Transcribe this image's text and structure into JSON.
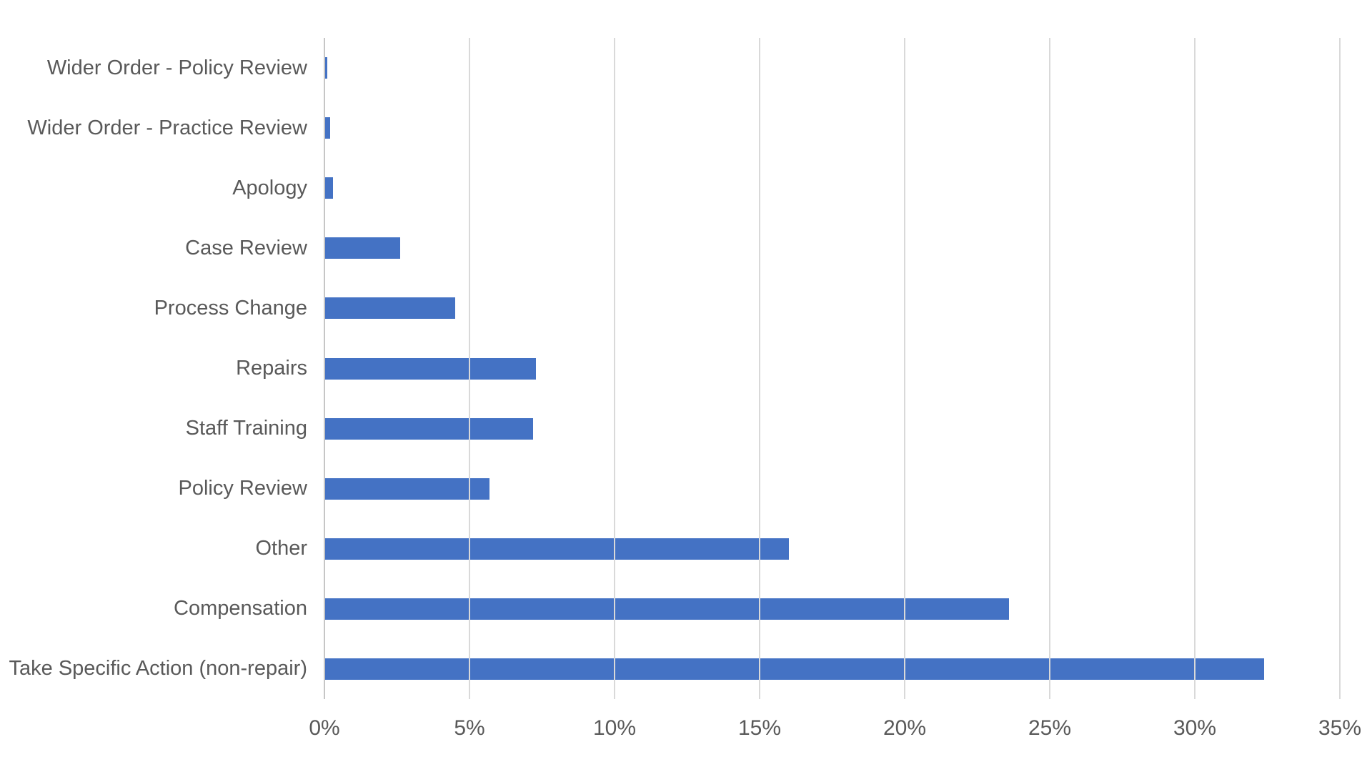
{
  "chart_data": {
    "type": "bar",
    "orientation": "horizontal",
    "title": "",
    "xlabel": "",
    "ylabel": "",
    "categories": [
      "Wider Order - Policy Review",
      "Wider Order - Practice Review",
      "Apology",
      "Case Review",
      "Process Change",
      "Repairs",
      "Staff Training",
      "Policy Review",
      "Other",
      "Compensation",
      "Take Specific Action (non-repair)"
    ],
    "values": [
      0.1,
      0.2,
      0.3,
      2.6,
      4.5,
      7.3,
      7.2,
      5.7,
      16,
      23.6,
      32.4
    ],
    "unit": "%",
    "xlim": [
      0,
      35
    ],
    "tick_step": 5,
    "x_ticks": [
      "0%",
      "5%",
      "10%",
      "15%",
      "20%",
      "25%",
      "30%",
      "35%"
    ],
    "grid": true,
    "legend": false,
    "colors": {
      "bar": "#4472C4",
      "gridline": "#D9D9D9",
      "axis_line": "#C6C6C6",
      "text": "#595959",
      "background": "#FFFFFF"
    }
  }
}
